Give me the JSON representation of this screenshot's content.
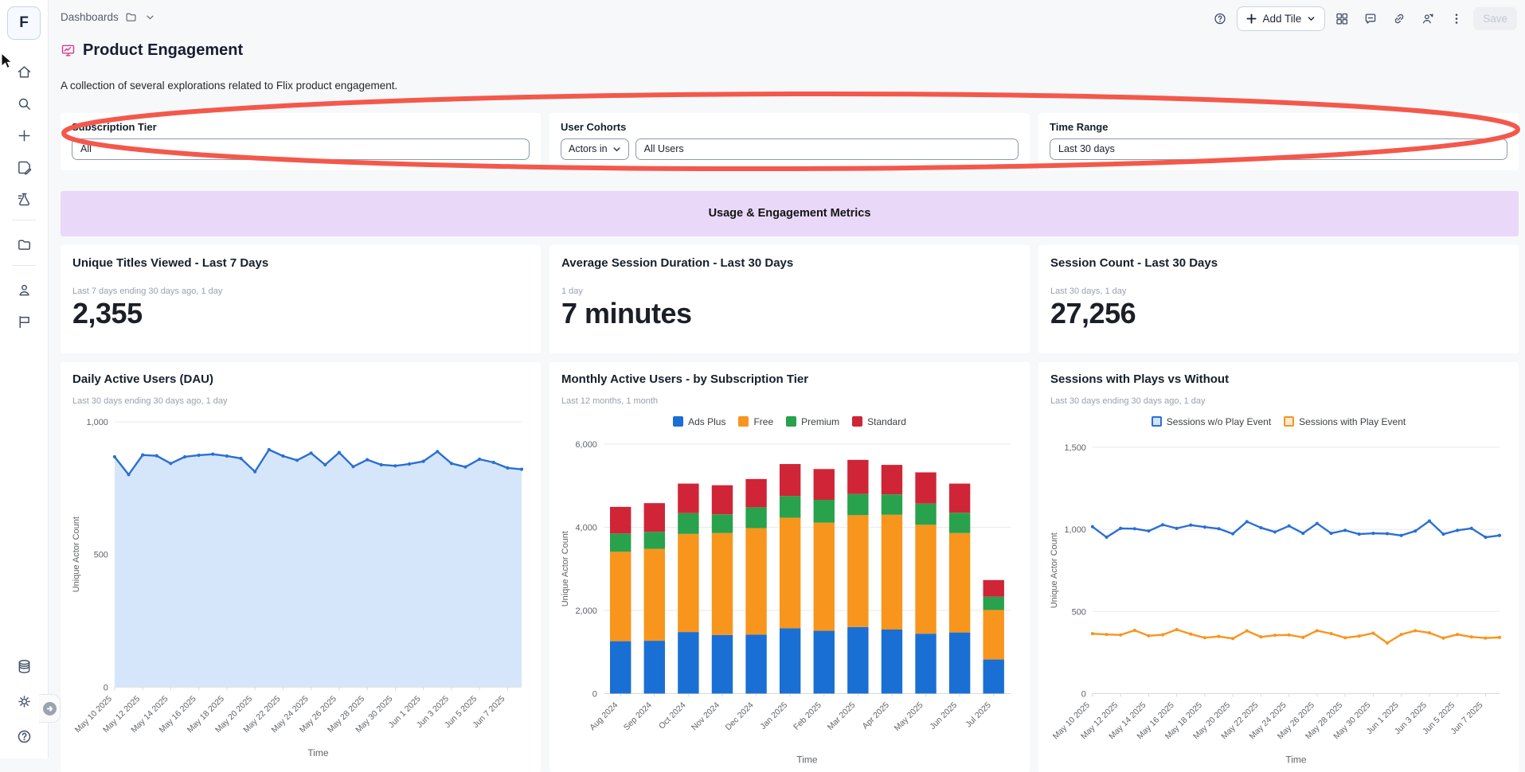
{
  "app": {
    "logo_letter": "F"
  },
  "sidebar": {
    "icons_top": [
      "home-icon",
      "search-icon",
      "plus-icon",
      "edit-document-icon",
      "explore-icon"
    ],
    "icons_middle": [
      "folder-icon"
    ],
    "icons_lower": [
      "user-icon",
      "flag-icon"
    ],
    "icons_bottom": [
      "database-icon",
      "settings-icon",
      "help-icon",
      "collapse-sidebar-arrow-icon"
    ]
  },
  "header": {
    "breadcrumb": "Dashboards",
    "toolbar": {
      "help_icon": "help-circle-icon",
      "add_tile_label": "Add Tile",
      "icons": [
        "grid-view-icon",
        "comment-icon",
        "link-icon",
        "share-users-icon",
        "more-options-icon"
      ],
      "save_label": "Save",
      "save_enabled": false
    }
  },
  "page": {
    "title": "Product Engagement",
    "description": "A collection of several explorations related to Flix product engagement."
  },
  "filters": {
    "subscription_tier": {
      "label": "Subscription Tier",
      "value": "All"
    },
    "user_cohorts": {
      "label": "User Cohorts",
      "operator": "Actors in",
      "value": "All Users"
    },
    "time_range": {
      "label": "Time Range",
      "value": "Last 30 days"
    }
  },
  "annotation": {
    "shape": "hand-drawn-ellipse",
    "color": "#f4584b",
    "around": "filters row"
  },
  "section_banner": {
    "title": "Usage & Engagement Metrics",
    "background": "#e9d8f8"
  },
  "kpis": [
    {
      "title": "Unique Titles Viewed - Last 7 Days",
      "caption": "Last 7 days ending 30 days ago, 1 day",
      "value": "2,355"
    },
    {
      "title": "Average Session Duration - Last 30 Days",
      "caption": "1 day",
      "value": "7 minutes"
    },
    {
      "title": "Session Count - Last 30 Days",
      "caption": "Last 30 days, 1 day",
      "value": "27,256"
    }
  ],
  "chart_data": [
    {
      "type": "area",
      "title": "Daily Active Users (DAU)",
      "caption": "Last 30 days ending 30 days ago, 1 day",
      "xlabel": "Time",
      "ylabel": "Unique Actor Count",
      "ylim": [
        0,
        1000
      ],
      "yticks": [
        0,
        500,
        1000
      ],
      "ytick_labels": [
        "0",
        "500",
        "1,000"
      ],
      "x_tick_labels": [
        "May 10 2025",
        "May 12 2025",
        "May 14 2025",
        "May 16 2025",
        "May 18 2025",
        "May 20 2025",
        "May 22 2025",
        "May 24 2025",
        "May 26 2025",
        "May 28 2025",
        "May 30 2025",
        "Jun 1 2025",
        "Jun 3 2025",
        "Jun 5 2025",
        "Jun 7 2025"
      ],
      "tick_every": 2,
      "legend": null,
      "series": [
        {
          "name": "Unique Actor Count",
          "color": "#2a6fd4",
          "fill": "#d6e6fa",
          "values": [
            868,
            801,
            875,
            872,
            843,
            868,
            874,
            878,
            871,
            862,
            812,
            895,
            871,
            855,
            882,
            838,
            884,
            831,
            857,
            838,
            834,
            841,
            851,
            888,
            843,
            830,
            859,
            847,
            826,
            821
          ]
        }
      ]
    },
    {
      "type": "bar",
      "title": "Monthly Active Users - by Subscription Tier",
      "caption": "Last 12 months, 1 month",
      "xlabel": "Time",
      "ylabel": "Unique Actor Count",
      "ylim": [
        0,
        6000
      ],
      "yticks": [
        0,
        2000,
        4000,
        6000
      ],
      "ytick_labels": [
        "0",
        "2,000",
        "4,000",
        "6,000"
      ],
      "categories": [
        "Aug 2024",
        "Sep 2024",
        "Oct 2024",
        "Nov 2024",
        "Dec 2024",
        "Jan 2025",
        "Feb 2025",
        "Mar 2025",
        "Apr 2025",
        "May 2025",
        "Jun 2025",
        "Jul 2025"
      ],
      "legend": "top",
      "legend_style": "solid",
      "series": [
        {
          "name": "Ads Plus",
          "color": "#1a6fd4",
          "values": [
            1260,
            1270,
            1480,
            1410,
            1420,
            1570,
            1510,
            1600,
            1540,
            1440,
            1470,
            820
          ]
        },
        {
          "name": "Free",
          "color": "#f8951d",
          "values": [
            2150,
            2210,
            2360,
            2450,
            2560,
            2660,
            2600,
            2690,
            2760,
            2620,
            2390,
            1190
          ]
        },
        {
          "name": "Premium",
          "color": "#28a24c",
          "values": [
            440,
            410,
            500,
            450,
            500,
            520,
            550,
            510,
            490,
            510,
            490,
            320
          ]
        },
        {
          "name": "Standard",
          "color": "#d02537",
          "values": [
            640,
            690,
            710,
            700,
            680,
            770,
            740,
            820,
            710,
            750,
            700,
            400
          ]
        }
      ]
    },
    {
      "type": "line",
      "title": "Sessions with Plays vs Without",
      "caption": "Last 30 days ending 30 days ago, 1 day",
      "xlabel": "Time",
      "ylabel": "Unique Actor Count",
      "ylim": [
        0,
        1500
      ],
      "yticks": [
        0,
        500,
        1000,
        1500
      ],
      "ytick_labels": [
        "0",
        "500",
        "1,000",
        "1,500"
      ],
      "x_tick_labels": [
        "May 10 2025",
        "May 12 2025",
        "May 14 2025",
        "May 16 2025",
        "May 18 2025",
        "May 20 2025",
        "May 22 2025",
        "May 24 2025",
        "May 26 2025",
        "May 28 2025",
        "May 30 2025",
        "Jun 1 2025",
        "Jun 3 2025",
        "Jun 5 2025",
        "Jun 7 2025"
      ],
      "tick_every": 2,
      "legend": "top",
      "legend_style": "outlined",
      "series": [
        {
          "name": "Sessions w/o Play Event",
          "color": "#2a6fd4",
          "values": [
            1016,
            952,
            1006,
            1004,
            990,
            1028,
            1006,
            1026,
            1014,
            1004,
            973,
            1047,
            1010,
            984,
            1021,
            976,
            1036,
            976,
            994,
            971,
            976,
            974,
            963,
            990,
            1051,
            971,
            994,
            1006,
            952,
            963
          ]
        },
        {
          "name": "Sessions with Play Event",
          "color": "#f8951d",
          "values": [
            365,
            360,
            357,
            385,
            352,
            358,
            390,
            362,
            340,
            348,
            335,
            382,
            345,
            355,
            357,
            342,
            383,
            365,
            340,
            350,
            368,
            308,
            360,
            383,
            370,
            338,
            360,
            345,
            338,
            342
          ]
        }
      ]
    }
  ]
}
